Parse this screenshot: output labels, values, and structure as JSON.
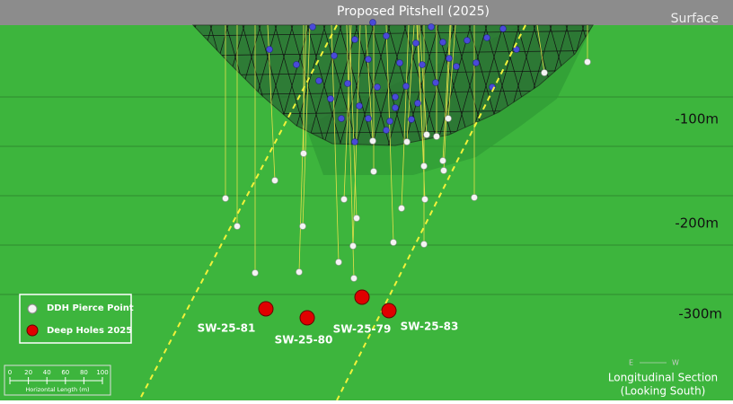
{
  "title": "Proposed Pitshell (2025)",
  "surface_label": "Surface",
  "depth_labels": [
    "-100m",
    "-200m",
    "-300m"
  ],
  "legend": {
    "pierce_point": "DDH Pierce Point",
    "deep_holes": "Deep Holes 2025"
  },
  "holes": [
    "SW-25-81",
    "SW-25-80",
    "SW-25-79",
    "SW-25-83"
  ],
  "scale_bar": {
    "ticks": [
      "0",
      "20",
      "40",
      "60",
      "80",
      "100"
    ],
    "caption": "Horizontal Length (m)"
  },
  "compass": [
    "E",
    "W"
  ],
  "section_label": [
    "Longitudinal Section",
    "(Looking South)"
  ]
}
